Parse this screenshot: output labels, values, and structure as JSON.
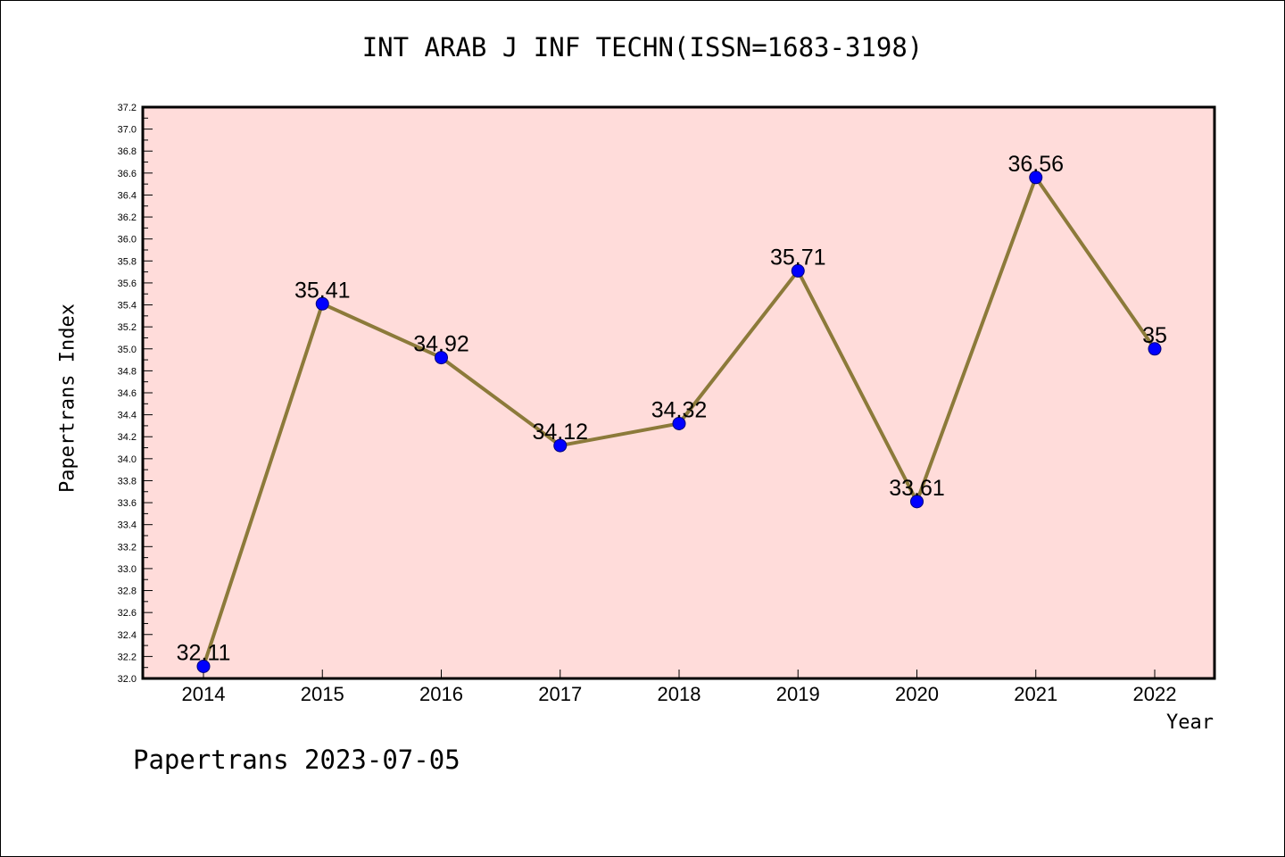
{
  "title": "INT ARAB J INF TECHN(ISSN=1683-3198)",
  "footer": "Papertrans 2023-07-05",
  "colors": {
    "plot_background": "#ffdcda",
    "line": "#8c7a3a",
    "marker": "#0000ff",
    "axis": "#000000"
  },
  "chart_data": {
    "type": "line",
    "title": "INT ARAB J INF TECHN(ISSN=1683-3198)",
    "xlabel": "Year",
    "ylabel": "Papertrans Index",
    "categories": [
      "2014",
      "2015",
      "2016",
      "2017",
      "2018",
      "2019",
      "2020",
      "2021",
      "2022"
    ],
    "series": [
      {
        "values": [
          32.11,
          35.41,
          34.92,
          34.12,
          34.32,
          35.71,
          33.61,
          36.56,
          35
        ],
        "labels": [
          "32.11",
          "35.41",
          "34.92",
          "34.12",
          "34.32",
          "35.71",
          "33.61",
          "36.56",
          "35"
        ]
      }
    ],
    "ylim": [
      32.0,
      37.2
    ],
    "yticks": [
      "32.0",
      "32.2",
      "32.4",
      "32.6",
      "32.8",
      "33.0",
      "33.2",
      "33.4",
      "33.6",
      "33.8",
      "34.0",
      "34.2",
      "34.4",
      "34.6",
      "34.8",
      "35.0",
      "35.2",
      "35.4",
      "35.6",
      "35.8",
      "36.0",
      "36.2",
      "36.4",
      "36.6",
      "36.8",
      "37.0",
      "37.2"
    ],
    "grid": false,
    "legend": "none"
  }
}
